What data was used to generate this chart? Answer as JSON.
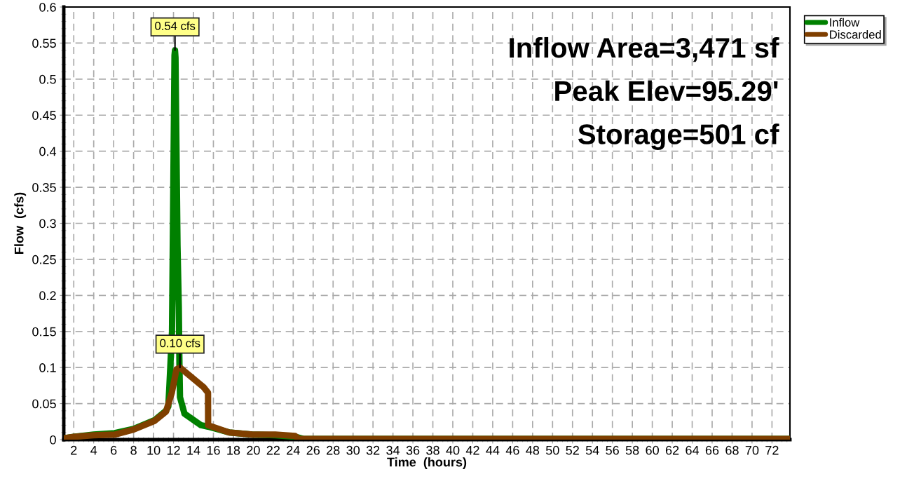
{
  "chart_data": {
    "type": "line",
    "xlabel": "Time  (hours)",
    "ylabel": "Flow  (cfs)",
    "xlim": [
      1,
      73.8
    ],
    "ylim": [
      0,
      0.6
    ],
    "xticks": [
      2,
      4,
      6,
      8,
      10,
      12,
      14,
      16,
      18,
      20,
      22,
      24,
      26,
      28,
      30,
      32,
      34,
      36,
      38,
      40,
      42,
      44,
      46,
      48,
      50,
      52,
      54,
      56,
      58,
      60,
      62,
      64,
      66,
      68,
      70,
      72
    ],
    "yticks": [
      0,
      0.05,
      0.1,
      0.15,
      0.2,
      0.25,
      0.3,
      0.35,
      0.4,
      0.45,
      0.5,
      0.55,
      0.6
    ],
    "grid": true,
    "legend": "top right",
    "line_style": "solid",
    "marker": "none",
    "series": [
      {
        "name": "Inflow",
        "color": "#008000",
        "x": [
          1.07,
          2,
          4,
          6.1,
          8,
          10.1,
          11.25,
          11.48,
          11.6,
          11.85,
          11.9,
          12.1,
          12.15,
          12.2,
          12.4,
          12.53,
          12.6,
          12.65,
          13.1,
          14.76,
          15.46,
          17.57,
          19.9,
          22.2,
          24.2,
          25,
          73.8
        ],
        "values": [
          0.002,
          0.004,
          0.007,
          0.009,
          0.015,
          0.027,
          0.04,
          0.046,
          0.078,
          0.15,
          0.227,
          0.533,
          0.54,
          0.53,
          0.27,
          0.184,
          0.099,
          0.059,
          0.036,
          0.02,
          0.018,
          0.01,
          0.007,
          0.006,
          0.004,
          0.001,
          0.001
        ]
      },
      {
        "name": "Discarded",
        "color": "#7f3f00",
        "x": [
          1.07,
          2,
          4,
          6.1,
          8,
          10.1,
          11.25,
          11.83,
          12.3,
          12.65,
          15.0,
          15.46,
          15.47,
          17.57,
          19.9,
          22.2,
          24.2,
          24.6,
          73.8
        ],
        "values": [
          0.002,
          0.004,
          0.006,
          0.007,
          0.014,
          0.026,
          0.039,
          0.065,
          0.0975,
          0.1,
          0.073,
          0.065,
          0.02,
          0.01,
          0.007,
          0.007,
          0.005,
          0.001,
          0.001
        ]
      }
    ],
    "annotations": [
      {
        "text": "0.54 cfs",
        "x": 12.15,
        "y": 0.54
      },
      {
        "text": "0.10 cfs",
        "x": 12.65,
        "y": 0.1
      },
      "Inflow Area=3,471 sf",
      "Peak Elev=95.29'",
      "Storage=501 cf"
    ]
  }
}
